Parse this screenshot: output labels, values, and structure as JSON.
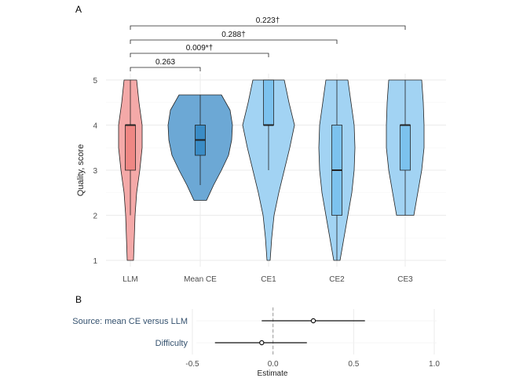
{
  "chart_data": [
    {
      "panel": "A",
      "type": "violin",
      "ylabel": "Quality, score",
      "xlabel": "",
      "ylim": [
        1,
        5
      ],
      "yticks": [
        1,
        2,
        3,
        4,
        5
      ],
      "grid": true,
      "categories": [
        "LLM",
        "Mean CE",
        "CE1",
        "CE2",
        "CE3"
      ],
      "groups": [
        {
          "name": "LLM",
          "color": "#F4A9A8",
          "min": 1,
          "q1": 3,
          "median": 4,
          "q3": 4,
          "max": 5,
          "upper_whisker": 5,
          "lower_whisker": 2,
          "density": [
            [
              1,
              4
            ],
            [
              1.5,
              5
            ],
            [
              2,
              6
            ],
            [
              2.5,
              8
            ],
            [
              3,
              12
            ],
            [
              3.5,
              15
            ],
            [
              4,
              15
            ],
            [
              4.5,
              11
            ],
            [
              5,
              8
            ]
          ]
        },
        {
          "name": "Mean CE",
          "color": "#6CA8D5",
          "min": 2.33,
          "q1": 3.33,
          "median": 3.67,
          "q3": 4,
          "max": 4.67,
          "upper_whisker": 4.67,
          "lower_whisker": 2.67,
          "density": [
            [
              2.33,
              8
            ],
            [
              2.67,
              17
            ],
            [
              3,
              27
            ],
            [
              3.33,
              36
            ],
            [
              3.67,
              40
            ],
            [
              4,
              41
            ],
            [
              4.33,
              38
            ],
            [
              4.67,
              27
            ]
          ]
        },
        {
          "name": "CE1",
          "color": "#A2D3F3",
          "min": 1,
          "q1": 4,
          "median": 4,
          "q3": 5,
          "max": 5,
          "upper_whisker": 5,
          "lower_whisker": 3,
          "density": [
            [
              1,
              2
            ],
            [
              1.5,
              4
            ],
            [
              2,
              7
            ],
            [
              2.5,
              13
            ],
            [
              3,
              20
            ],
            [
              3.5,
              27
            ],
            [
              4,
              33
            ],
            [
              4.5,
              26
            ],
            [
              5,
              20
            ]
          ]
        },
        {
          "name": "CE2",
          "color": "#A2D3F3",
          "min": 1,
          "q1": 2,
          "median": 3,
          "q3": 4,
          "max": 5,
          "upper_whisker": 5,
          "lower_whisker": 1,
          "density": [
            [
              1,
              4
            ],
            [
              1.5,
              9
            ],
            [
              2,
              14
            ],
            [
              2.5,
              19
            ],
            [
              3,
              22
            ],
            [
              3.5,
              23
            ],
            [
              4,
              22
            ],
            [
              4.5,
              18
            ],
            [
              5,
              14
            ]
          ]
        },
        {
          "name": "CE3",
          "color": "#A2D3F3",
          "min": 2,
          "q1": 3,
          "median": 4,
          "q3": 4,
          "max": 5,
          "upper_whisker": 5,
          "lower_whisker": 2,
          "density": [
            [
              2,
              11
            ],
            [
              2.5,
              16
            ],
            [
              3,
              21
            ],
            [
              3.5,
              24
            ],
            [
              4,
              24
            ],
            [
              4.5,
              23
            ],
            [
              5,
              21
            ]
          ]
        }
      ],
      "annotations": [
        {
          "from": "LLM",
          "to": "Mean CE",
          "label": "0.263",
          "level": 1
        },
        {
          "from": "LLM",
          "to": "CE1",
          "label": "0.009*†",
          "level": 2
        },
        {
          "from": "LLM",
          "to": "CE2",
          "label": "0.288†",
          "level": 3
        },
        {
          "from": "LLM",
          "to": "CE3",
          "label": "0.223†",
          "level": 4
        }
      ]
    },
    {
      "panel": "B",
      "type": "forest",
      "xlabel": "Estimate",
      "xlim": [
        -0.5,
        1.0
      ],
      "xticks": [
        -0.5,
        0.0,
        0.5,
        1.0
      ],
      "xtick_labels": [
        "-0.5",
        "0.0",
        "0.5",
        "1.0"
      ],
      "reference_line": 0,
      "grid": true,
      "rows": [
        {
          "label": "Source: mean CE versus LLM",
          "estimate": 0.25,
          "low": -0.07,
          "high": 0.57
        },
        {
          "label": "Difficulty",
          "estimate": -0.07,
          "low": -0.36,
          "high": 0.21
        }
      ]
    }
  ],
  "panel_labels": [
    "A",
    "B"
  ],
  "colors": {
    "axis_text": "#4D4D4D",
    "grid": "#EBEBEB",
    "outline": "#222222",
    "label_blue": "#34516E",
    "dashed": "#9A9A9A"
  }
}
